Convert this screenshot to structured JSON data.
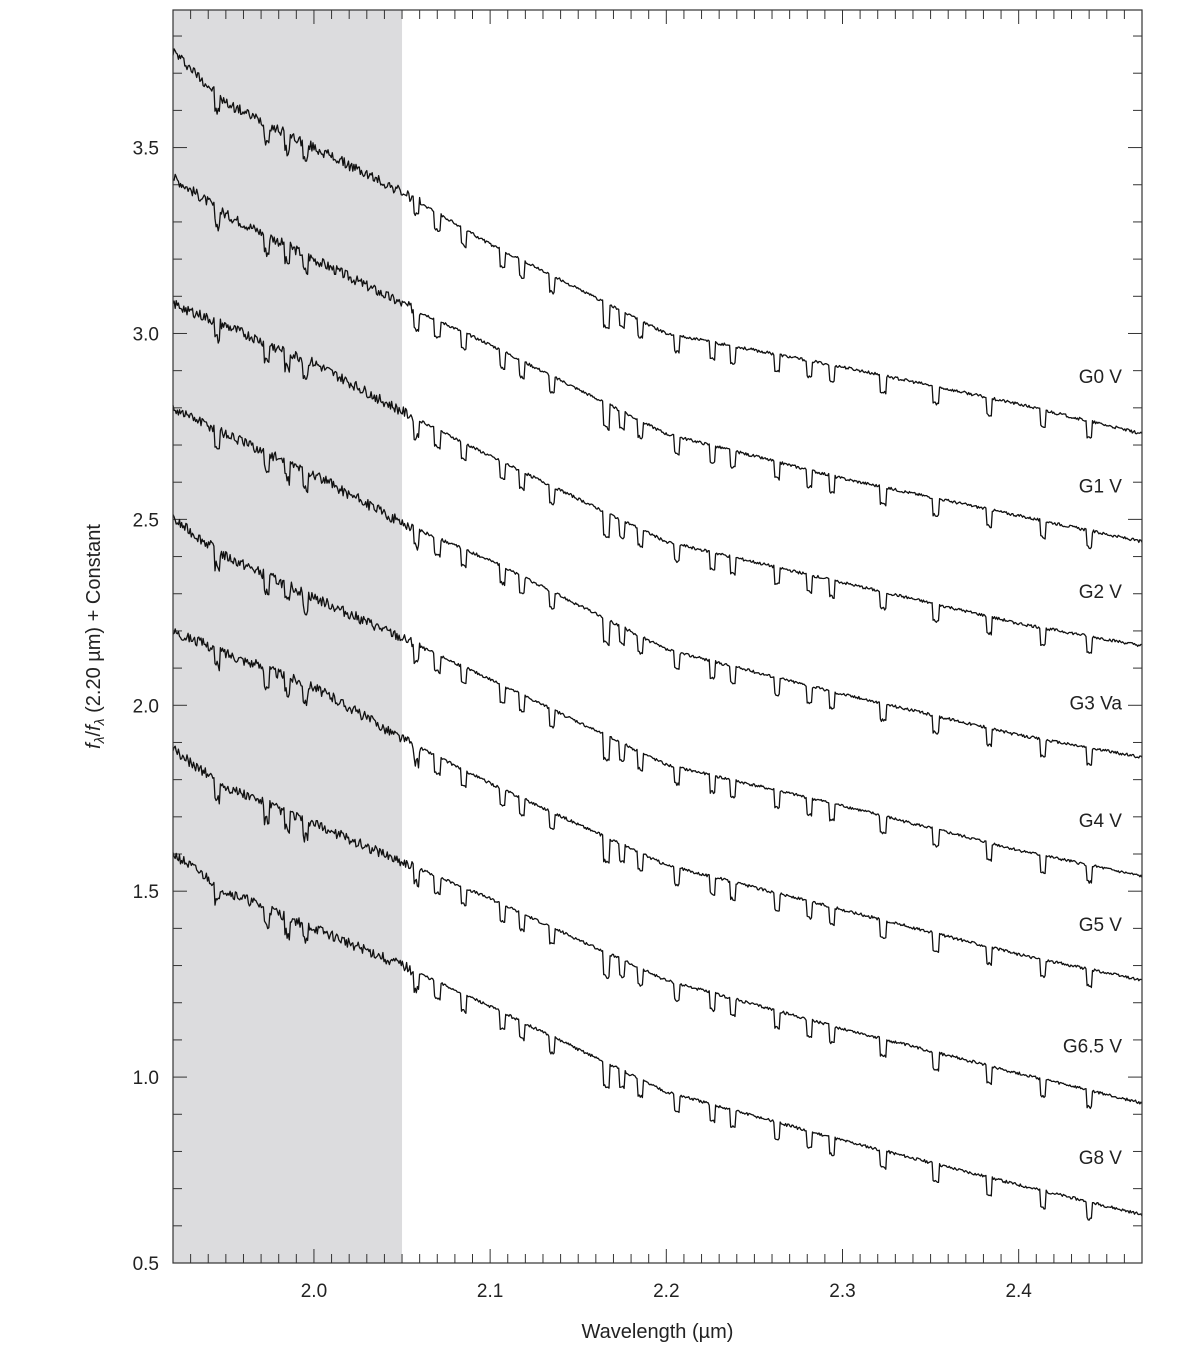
{
  "chart_data": {
    "type": "line",
    "title": "",
    "xlabel": "Wavelength (µm)",
    "ylabel": {
      "prefix_f1": "f",
      "sub1": "λ",
      "slash": "/",
      "prefix_f2": "f",
      "sub2": "λ",
      "suffix": " (2.20 µm) + Constant"
    },
    "xlim": [
      1.92,
      2.47
    ],
    "ylim": [
      0.5,
      3.87
    ],
    "x_ticks": [
      2.0,
      2.1,
      2.2,
      2.3,
      2.4
    ],
    "x_tick_labels": [
      "2.0",
      "2.1",
      "2.2",
      "2.3",
      "2.4"
    ],
    "y_ticks": [
      0.5,
      1.0,
      1.5,
      2.0,
      2.5,
      3.0,
      3.5
    ],
    "y_tick_labels": [
      "0.5",
      "1.0",
      "1.5",
      "2.0",
      "2.5",
      "3.0",
      "3.5"
    ],
    "grid": false,
    "shaded_region": {
      "x": [
        1.92,
        2.05
      ],
      "color": "#dcdcde"
    },
    "colors": {
      "line": "#111111",
      "shade": "#dcdcde",
      "axis": "#333333"
    },
    "absorption_lines": [
      1.945,
      1.973,
      1.985,
      1.995,
      2.058,
      2.07,
      2.085,
      2.107,
      2.118,
      2.135,
      2.166,
      2.175,
      2.185,
      2.206,
      2.226,
      2.238,
      2.263,
      2.281,
      2.294,
      2.323,
      2.353,
      2.383,
      2.414,
      2.44
    ],
    "series": [
      {
        "name": "G0 V",
        "x": [
          1.92,
          1.95,
          2.0,
          2.05,
          2.1,
          2.2,
          2.3,
          2.4,
          2.47
        ],
        "values": [
          3.76,
          3.62,
          3.5,
          3.38,
          3.24,
          3.0,
          2.91,
          2.81,
          2.73
        ]
      },
      {
        "name": "G1 V",
        "x": [
          1.92,
          1.95,
          2.0,
          2.05,
          2.1,
          2.2,
          2.3,
          2.4,
          2.47
        ],
        "values": [
          3.42,
          3.32,
          3.2,
          3.08,
          2.97,
          2.73,
          2.61,
          2.51,
          2.44
        ]
      },
      {
        "name": "G2 V",
        "x": [
          1.92,
          1.95,
          2.0,
          2.05,
          2.1,
          2.2,
          2.3,
          2.4,
          2.47
        ],
        "values": [
          3.08,
          3.02,
          2.92,
          2.79,
          2.67,
          2.44,
          2.33,
          2.22,
          2.16
        ]
      },
      {
        "name": "G3 Va",
        "x": [
          1.92,
          1.95,
          2.0,
          2.05,
          2.1,
          2.2,
          2.3,
          2.4,
          2.47
        ],
        "values": [
          2.8,
          2.73,
          2.62,
          2.49,
          2.39,
          2.15,
          2.03,
          1.92,
          1.86
        ]
      },
      {
        "name": "G4 V",
        "x": [
          1.92,
          1.95,
          2.0,
          2.05,
          2.1,
          2.2,
          2.3,
          2.4,
          2.47
        ],
        "values": [
          2.5,
          2.4,
          2.29,
          2.18,
          2.07,
          1.84,
          1.73,
          1.61,
          1.54
        ]
      },
      {
        "name": "G5 V",
        "x": [
          1.92,
          1.95,
          2.0,
          2.05,
          2.1,
          2.2,
          2.3,
          2.4,
          2.47
        ],
        "values": [
          2.2,
          2.14,
          2.05,
          1.91,
          1.79,
          1.57,
          1.45,
          1.33,
          1.26
        ]
      },
      {
        "name": "G6.5 V",
        "x": [
          1.92,
          1.95,
          2.0,
          2.05,
          2.1,
          2.2,
          2.3,
          2.4,
          2.47
        ],
        "values": [
          1.88,
          1.78,
          1.68,
          1.58,
          1.48,
          1.26,
          1.13,
          1.01,
          0.93
        ]
      },
      {
        "name": "G8 V",
        "x": [
          1.92,
          1.95,
          2.0,
          2.05,
          2.1,
          2.2,
          2.3,
          2.4,
          2.47
        ],
        "values": [
          1.6,
          1.5,
          1.4,
          1.3,
          1.19,
          0.96,
          0.83,
          0.71,
          0.63
        ]
      }
    ]
  }
}
